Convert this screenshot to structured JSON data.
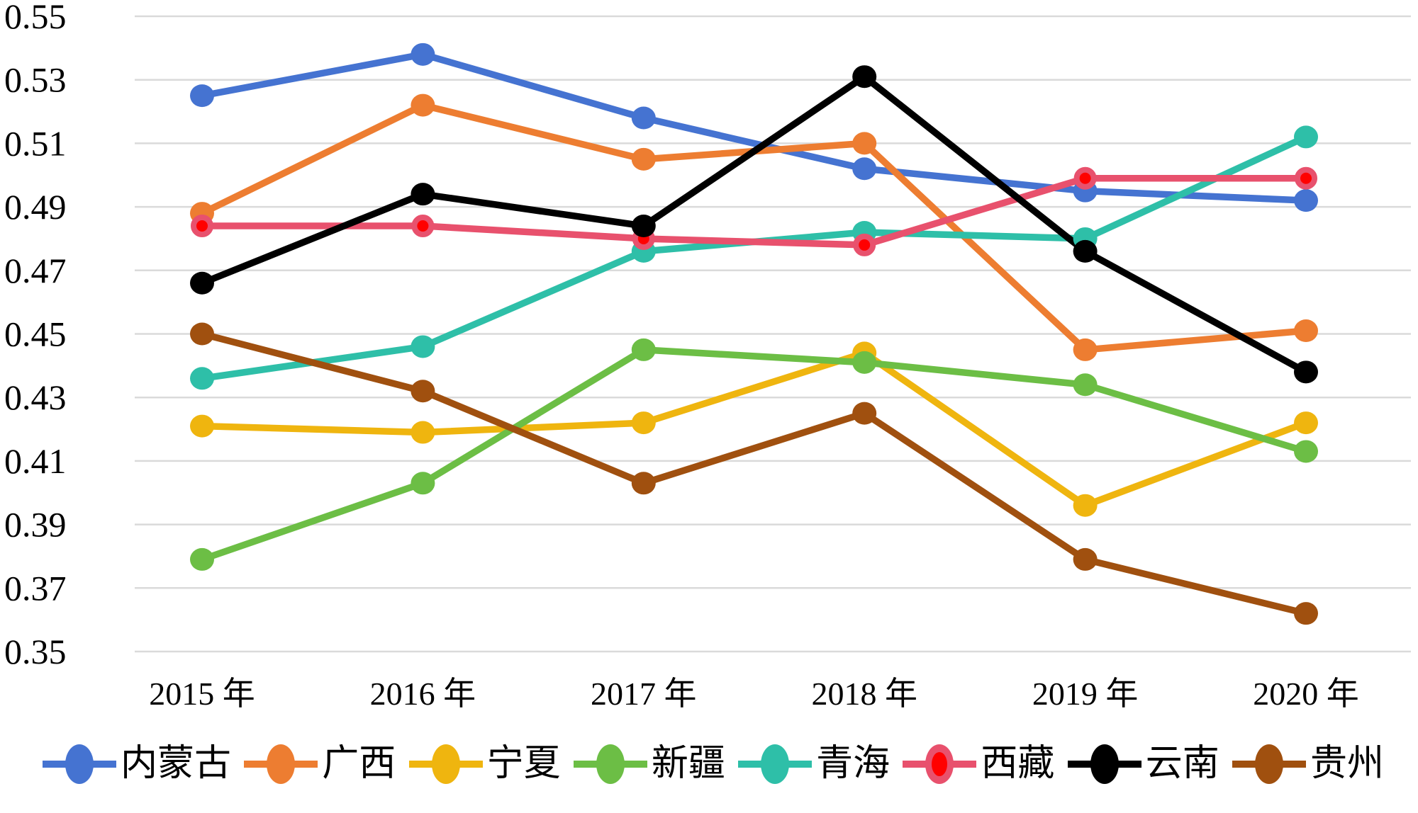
{
  "chart_data": {
    "type": "line",
    "x": [
      "2015 年",
      "2016 年",
      "2017 年",
      "2018 年",
      "2019 年",
      "2020 年"
    ],
    "ylim": [
      0.35,
      0.55
    ],
    "ytick_step": 0.02,
    "yticks": [
      "0.55",
      "0.53",
      "0.51",
      "0.49",
      "0.47",
      "0.45",
      "0.43",
      "0.41",
      "0.39",
      "0.37",
      "0.35"
    ],
    "grid": true,
    "gridline_color": "#DADADA",
    "background": "#FFFFFF",
    "text_color": "#000000",
    "legend_position": "bottom",
    "series": [
      {
        "id": "neimenggu",
        "name": "内蒙古",
        "color": "#4573D1",
        "values": [
          0.525,
          0.538,
          0.518,
          0.502,
          0.495,
          0.492
        ]
      },
      {
        "id": "guangxi",
        "name": "广西",
        "color": "#ED7D31",
        "values": [
          0.488,
          0.522,
          0.505,
          0.51,
          0.445,
          0.451
        ]
      },
      {
        "id": "ningxia",
        "name": "宁夏",
        "color": "#EFB50F",
        "values": [
          0.421,
          0.419,
          0.422,
          0.444,
          0.396,
          0.422
        ]
      },
      {
        "id": "xinjiang",
        "name": "新疆",
        "color": "#6CBE45",
        "values": [
          0.379,
          0.403,
          0.445,
          0.441,
          0.434,
          0.413
        ]
      },
      {
        "id": "qinghai",
        "name": "青海",
        "color": "#2EBFA8",
        "values": [
          0.436,
          0.446,
          0.476,
          0.482,
          0.48,
          0.512
        ]
      },
      {
        "id": "xizang",
        "name": "西藏",
        "color": "#E8516D",
        "marker_fill": "#FF0000",
        "values": [
          0.484,
          0.484,
          0.48,
          0.478,
          0.499,
          0.499
        ]
      },
      {
        "id": "yunnan",
        "name": "云南",
        "color": "#000000",
        "values": [
          0.466,
          0.494,
          0.484,
          0.531,
          0.476,
          0.438
        ]
      },
      {
        "id": "guizhou",
        "name": "贵州",
        "color": "#A0500F",
        "values": [
          0.45,
          0.432,
          0.403,
          0.425,
          0.379,
          0.362
        ]
      }
    ]
  }
}
